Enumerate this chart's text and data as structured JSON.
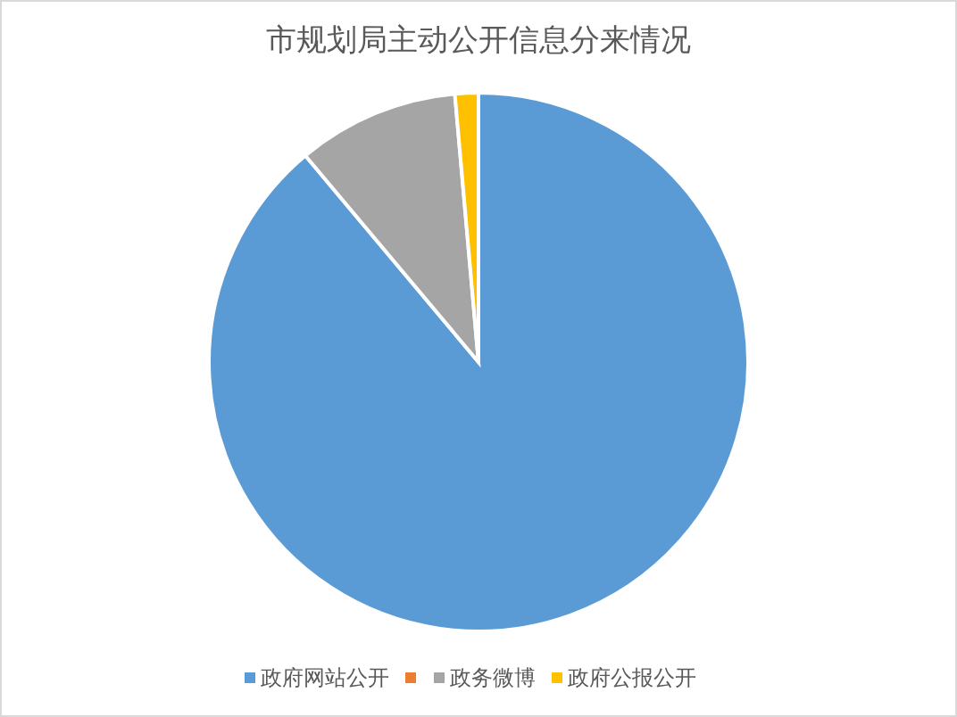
{
  "chart_data": {
    "type": "pie",
    "title": "市规划局主动公开信息分来情况",
    "categories": [
      "政府网站公开",
      null,
      "政务微博",
      "政府公报公开"
    ],
    "values": [
      88.9,
      0,
      9.7,
      1.4
    ],
    "colors": [
      "#5b9bd5",
      "#ed7d31",
      "#a5a5a5",
      "#ffc000"
    ],
    "legend": "bottom"
  }
}
